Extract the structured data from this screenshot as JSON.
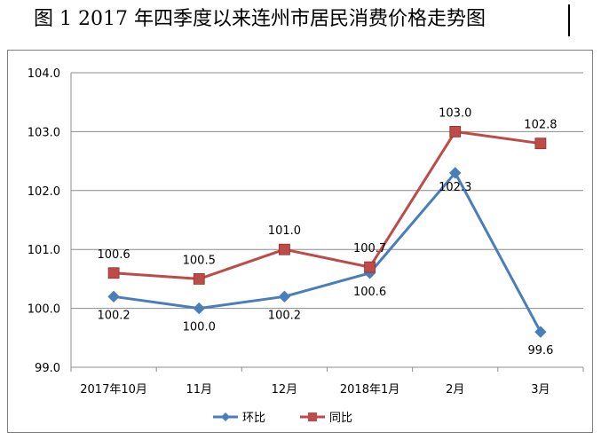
{
  "title": "图 1 2017 年四季度以来连州市居民消费价格走势图",
  "chart_data": {
    "type": "line",
    "categories": [
      "2017年10月",
      "11月",
      "12月",
      "2018年1月",
      "2月",
      "3月"
    ],
    "ylim": [
      99.0,
      104.0
    ],
    "yticks": [
      "99.0",
      "100.0",
      "101.0",
      "102.0",
      "103.0",
      "104.0"
    ],
    "grid": true,
    "legend_position": "bottom",
    "series": [
      {
        "name": "环比",
        "color": "#4a7ebb",
        "marker": "diamond",
        "values": [
          100.2,
          100.0,
          100.2,
          100.6,
          102.3,
          99.6
        ],
        "labels": [
          "100.2",
          "100.0",
          "100.2",
          "100.6",
          "102.3",
          "99.6"
        ]
      },
      {
        "name": "同比",
        "color": "#be4b48",
        "marker": "square",
        "values": [
          100.6,
          100.5,
          101.0,
          100.7,
          103.0,
          102.8
        ],
        "labels": [
          "100.6",
          "100.5",
          "101.0",
          "100.7",
          "103.0",
          "102.8"
        ]
      }
    ]
  }
}
